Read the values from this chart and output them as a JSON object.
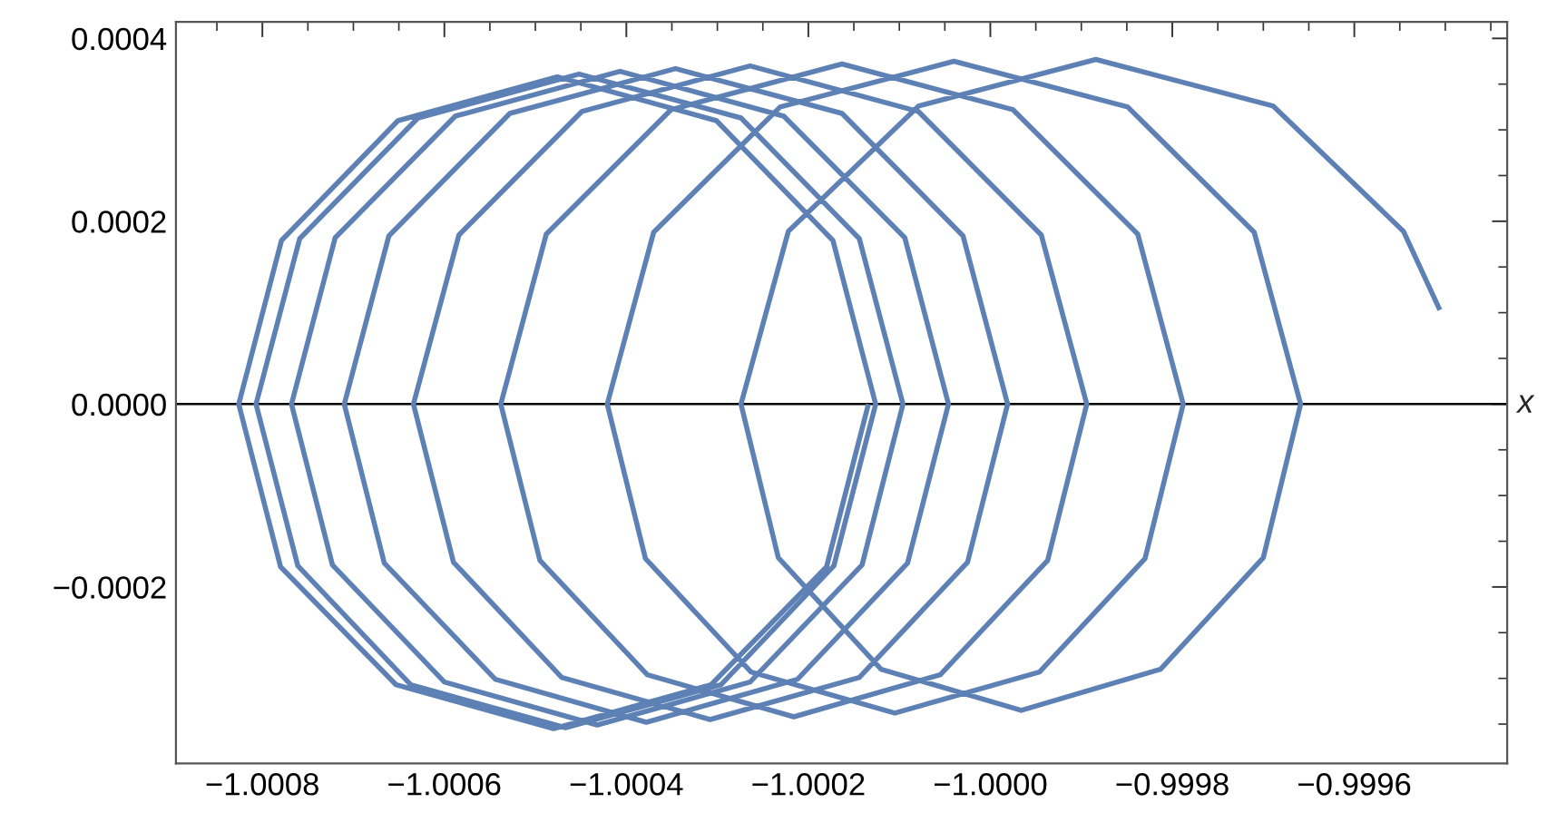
{
  "chart_data": {
    "type": "line",
    "xlabel": "x",
    "series": [
      {
        "color": "#5e81b5",
        "x": [
          -1.000134,
          -1.00018,
          -1.000307,
          -1.00048,
          -1.000653,
          -1.00078,
          -1.000826,
          -1.000779,
          -1.000651,
          -1.000476,
          -1.000301,
          -1.000173,
          -1.000126,
          -1.000172,
          -1.000296,
          -1.000467,
          -1.000637,
          -1.000761,
          -1.000807,
          -1.000759,
          -1.000629,
          -1.000452,
          -1.000274,
          -1.000144,
          -1.000096,
          -1.000141,
          -1.000264,
          -1.000432,
          -1.0006,
          -1.000723,
          -1.000768,
          -1.00072,
          -1.000588,
          -1.000407,
          -1.000227,
          -1.000094,
          -1.000046,
          -1.000091,
          -1.000212,
          -1.000378,
          -1.000544,
          -1.000666,
          -1.00071,
          -1.000661,
          -1.000528,
          -1.000346,
          -1.000163,
          -1.00003,
          -0.999981,
          -1.000025,
          -1.000144,
          -1.000308,
          -1.000471,
          -1.00059,
          -1.000634,
          -1.000584,
          -1.000449,
          -1.000264,
          -1.000079,
          -0.999944,
          -0.999894,
          -0.999937,
          -1.000055,
          -1.000216,
          -1.000377,
          -1.000495,
          -1.000538,
          -1.000488,
          -1.000351,
          -1.000163,
          -0.999975,
          -0.999838,
          -0.999788,
          -0.99983,
          -0.999946,
          -1.000105,
          -1.000263,
          -1.000379,
          -1.000421,
          -1.00037,
          -1.000231,
          -1.00004,
          -0.999849,
          -0.99971,
          -0.999659,
          -0.9997,
          -0.999813,
          -0.999966,
          -1.00012,
          -1.000233,
          -1.000274,
          -1.000222,
          -1.000079,
          -0.999884,
          -0.999689,
          -0.999546,
          -0.999506
        ],
        "values": [
          0,
          -0.000178,
          -0.000307,
          -0.000355,
          -0.000307,
          -0.000178,
          0,
          0.000179,
          0.00031,
          0.000358,
          0.00031,
          0.000179,
          0,
          -0.000177,
          -0.000307,
          -0.000354,
          -0.000307,
          -0.000177,
          0,
          0.000181,
          0.000313,
          0.000361,
          0.000313,
          0.000181,
          0,
          -0.000176,
          -0.000304,
          -0.000351,
          -0.000304,
          -0.000176,
          0,
          0.000182,
          0.000315,
          0.000364,
          0.000315,
          0.000182,
          0,
          -0.000174,
          -0.000301,
          -0.000348,
          -0.000301,
          -0.000174,
          0,
          0.000184,
          0.000318,
          0.000367,
          0.000318,
          0.000184,
          0,
          -0.000173,
          -0.000299,
          -0.000345,
          -0.000299,
          -0.000173,
          0,
          0.000185,
          0.00032,
          0.00037,
          0.00032,
          0.000185,
          0,
          -0.000171,
          -0.000296,
          -0.000342,
          -0.000296,
          -0.000171,
          0,
          0.000186,
          0.000322,
          0.000372,
          0.000322,
          0.000186,
          0,
          -0.000169,
          -0.000293,
          -0.000338,
          -0.000293,
          -0.000169,
          0,
          0.000188,
          0.000325,
          0.000375,
          0.000325,
          0.000188,
          0,
          -0.000168,
          -0.00029,
          -0.000335,
          -0.00029,
          -0.000168,
          0,
          0.000189,
          0.000326,
          0.000377,
          0.000326,
          0.000189,
          0.000103
        ]
      }
    ],
    "xlim": [
      -1.000895,
      -0.999432
    ],
    "ylim": [
      -0.000393,
      0.000418
    ],
    "xticks": [
      {
        "value": -1.0008,
        "label": "−1.0008"
      },
      {
        "value": -1.0006,
        "label": "−1.0006"
      },
      {
        "value": -1.0004,
        "label": "−1.0004"
      },
      {
        "value": -1.0002,
        "label": "−1.0002"
      },
      {
        "value": -1.0,
        "label": "−1.0000"
      },
      {
        "value": -0.9998,
        "label": "−0.9998"
      },
      {
        "value": -0.9996,
        "label": "−0.9996"
      }
    ],
    "yticks": [
      {
        "value": -0.0002,
        "label": "−0.0002"
      },
      {
        "value": 0,
        "label": "0.0000"
      },
      {
        "value": 0.0002,
        "label": "0.0002"
      },
      {
        "value": 0.0004,
        "label": "0.0004"
      }
    ],
    "ref_lines": [
      {
        "axis": "y",
        "value": 0,
        "color": "#000000"
      }
    ],
    "grid": false,
    "line_style": "solid"
  }
}
